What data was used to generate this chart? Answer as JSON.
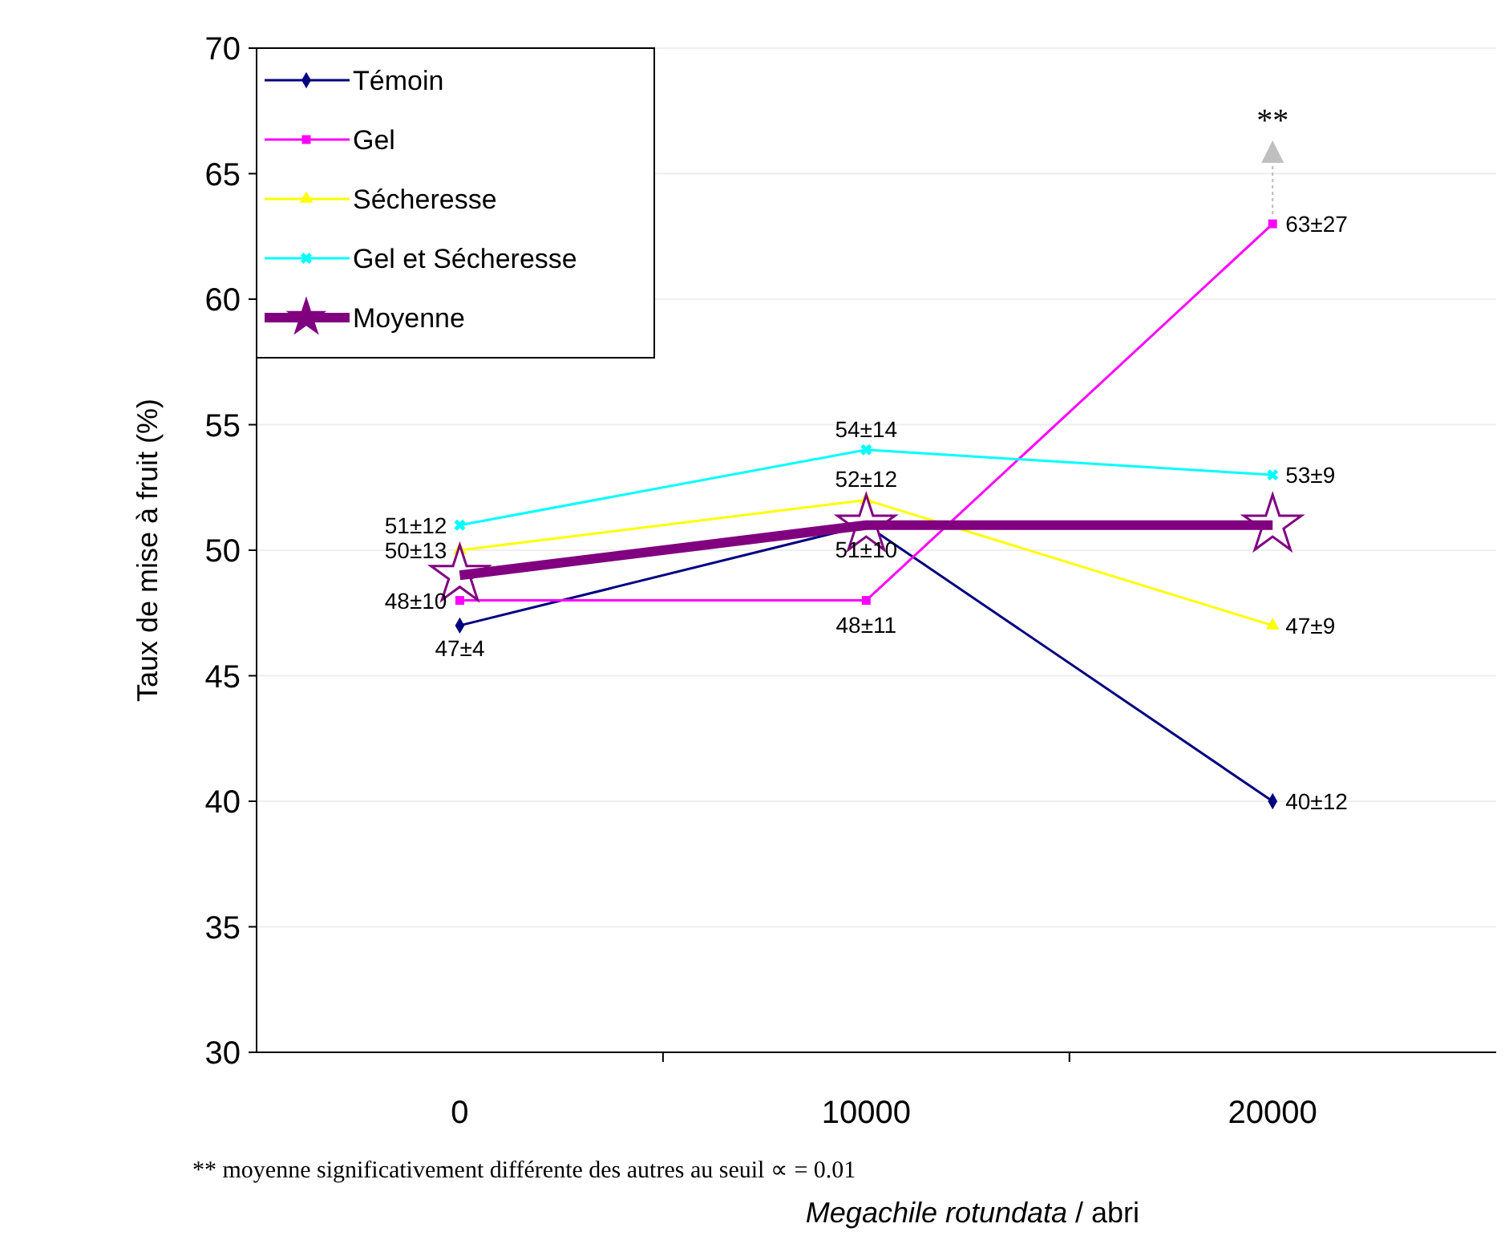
{
  "chart_data": {
    "type": "line",
    "categories": [
      "0",
      "10000",
      "20000"
    ],
    "xlabel": "Megachile rotundata / abri",
    "ylabel": "Taux de mise à fruit (%)",
    "ylim": [
      30,
      70
    ],
    "yticks": [
      30,
      35,
      40,
      45,
      50,
      55,
      60,
      65,
      70
    ],
    "grid": "y",
    "legend": "top left",
    "series": [
      {
        "name": "Témoin",
        "color": "#000080",
        "marker": "diamond",
        "values": [
          47,
          51,
          40
        ],
        "value_labels": [
          "47±4",
          "51±10",
          "40±12"
        ]
      },
      {
        "name": "Gel",
        "color": "#ff00ff",
        "marker": "square",
        "values": [
          48,
          48,
          63
        ],
        "value_labels": [
          "48±10",
          "48±11",
          "63±27"
        ]
      },
      {
        "name": "Sécheresse",
        "color": "#ffff00",
        "marker": "triangle",
        "values": [
          50,
          52,
          47
        ],
        "value_labels": [
          "50±13",
          "52±12",
          "47±9"
        ]
      },
      {
        "name": "Gel et Sécheresse",
        "color": "#00ffff",
        "marker": "cross",
        "values": [
          51,
          54,
          53
        ],
        "value_labels": [
          "51±12",
          "54±14",
          "53±9"
        ]
      },
      {
        "name": "Moyenne",
        "color": "#800080",
        "marker": "star",
        "values": [
          49,
          51,
          51
        ]
      }
    ],
    "annotations": [
      {
        "text": "**",
        "x": "20000",
        "y": 63
      },
      "** moyenne significativement différente des autres au seuil ∝ = 0.01"
    ]
  }
}
